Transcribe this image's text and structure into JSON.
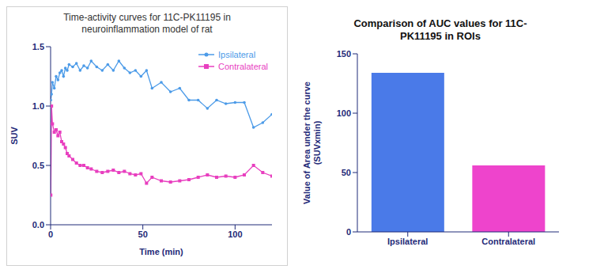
{
  "chart_data": [
    {
      "type": "line",
      "title": "Time-activity curves for 11C-PK11195 in neuroinflammation model of rat",
      "x_label": "Time (min)",
      "y_label": "SUV",
      "x": [
        0.1,
        0.5,
        1,
        2,
        3,
        4,
        5,
        6,
        7,
        8,
        9,
        10,
        12,
        14,
        16,
        18,
        20,
        22,
        25,
        28,
        31,
        34,
        37,
        40,
        43,
        46,
        49,
        52,
        55,
        60,
        65,
        70,
        75,
        80,
        85,
        90,
        95,
        100,
        105,
        110,
        115,
        120
      ],
      "series": [
        {
          "name": "Ipsilateral",
          "color": "#4C9BE8",
          "marker": "circle",
          "values": [
            1.05,
            1.1,
            1.2,
            1.15,
            1.25,
            1.22,
            1.28,
            1.3,
            1.25,
            1.32,
            1.3,
            1.35,
            1.33,
            1.36,
            1.3,
            1.34,
            1.32,
            1.38,
            1.33,
            1.3,
            1.35,
            1.3,
            1.38,
            1.32,
            1.28,
            1.3,
            1.25,
            1.3,
            1.15,
            1.2,
            1.12,
            1.15,
            1.05,
            1.05,
            0.98,
            1.05,
            1.02,
            1.03,
            1.03,
            0.82,
            0.86,
            0.93
          ]
        },
        {
          "name": "Contralateral",
          "color": "#E83FBF",
          "marker": "square",
          "values": [
            0.25,
            1.0,
            0.85,
            0.78,
            0.8,
            0.75,
            0.78,
            0.7,
            0.68,
            0.65,
            0.6,
            0.58,
            0.55,
            0.52,
            0.5,
            0.5,
            0.48,
            0.47,
            0.45,
            0.44,
            0.45,
            0.46,
            0.44,
            0.45,
            0.43,
            0.42,
            0.43,
            0.35,
            0.4,
            0.37,
            0.36,
            0.37,
            0.38,
            0.4,
            0.42,
            0.4,
            0.41,
            0.4,
            0.42,
            0.5,
            0.44,
            0.41
          ]
        }
      ],
      "xlim": [
        0,
        120
      ],
      "xticks": [
        0,
        50,
        100
      ],
      "ylim": [
        0,
        1.5
      ],
      "yticks": [
        {
          "value": 0,
          "label": "0.0"
        },
        {
          "value": 0.5,
          "label": "0.5"
        },
        {
          "value": 1,
          "label": "1.0"
        },
        {
          "value": 1.5,
          "label": "1.5"
        }
      ],
      "legend": "top-right"
    },
    {
      "type": "bar",
      "title": "Comparison of AUC values for 11C-PK11195 in ROIs",
      "y_label": "Value of Area under the curve (SUVxmin)",
      "categories": [
        "Ipsilateral",
        "Contralateral"
      ],
      "values": [
        134,
        56
      ],
      "colors": [
        "#4A7AE8",
        "#EE44CC"
      ],
      "ylim": [
        0,
        150
      ],
      "yticks": [
        0,
        50,
        100,
        150
      ]
    }
  ]
}
